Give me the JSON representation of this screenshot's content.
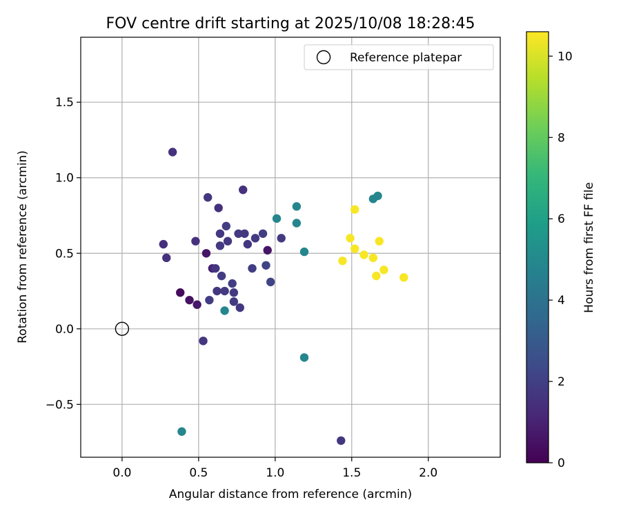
{
  "chart_data": {
    "type": "scatter",
    "title": "FOV centre drift starting at 2025/10/08 18:28:45",
    "xlabel": "Angular distance from reference (arcmin)",
    "ylabel": "Rotation from reference (arcmin)",
    "xlim": [
      -0.27,
      2.47
    ],
    "ylim": [
      -0.85,
      1.93
    ],
    "x_ticks": [
      0.0,
      0.5,
      1.0,
      1.5,
      2.0
    ],
    "x_tick_labels": [
      "0.0",
      "0.5",
      "1.0",
      "1.5",
      "2.0"
    ],
    "y_ticks": [
      -0.5,
      0.0,
      0.5,
      1.0,
      1.5
    ],
    "y_tick_labels": [
      "−0.5",
      "0.0",
      "0.5",
      "1.0",
      "1.5"
    ],
    "grid": true,
    "legend": {
      "placement": "top-right",
      "entries": [
        {
          "label": "Reference platepar",
          "marker": "open-circle"
        }
      ]
    },
    "reference_point": {
      "x": 0.0,
      "y": 0.0,
      "label": "Reference platepar"
    },
    "colorbar": {
      "label": "Hours from first FF file",
      "min": 0,
      "max": 10.6,
      "ticks": [
        0,
        2,
        4,
        6,
        8,
        10
      ],
      "tick_labels": [
        "0",
        "2",
        "4",
        "6",
        "8",
        "10"
      ],
      "colormap": "viridis",
      "colormap_stops": [
        "#440154",
        "#482878",
        "#3e4a89",
        "#31688e",
        "#26828e",
        "#1f9e89",
        "#35b779",
        "#6ece58",
        "#b5de2b",
        "#fde725"
      ]
    },
    "series": [
      {
        "name": "FOV centre",
        "points": [
          {
            "x": 0.33,
            "y": 1.17,
            "hours": 1.5
          },
          {
            "x": 0.56,
            "y": 0.87,
            "hours": 1.7
          },
          {
            "x": 0.63,
            "y": 0.8,
            "hours": 1.5
          },
          {
            "x": 0.79,
            "y": 0.92,
            "hours": 1.5
          },
          {
            "x": 0.68,
            "y": 0.68,
            "hours": 1.9
          },
          {
            "x": 0.64,
            "y": 0.63,
            "hours": 1.7
          },
          {
            "x": 0.76,
            "y": 0.63,
            "hours": 1.8
          },
          {
            "x": 0.8,
            "y": 0.63,
            "hours": 1.8
          },
          {
            "x": 0.87,
            "y": 0.6,
            "hours": 1.8
          },
          {
            "x": 0.92,
            "y": 0.63,
            "hours": 1.9
          },
          {
            "x": 1.04,
            "y": 0.6,
            "hours": 1.8
          },
          {
            "x": 0.69,
            "y": 0.58,
            "hours": 1.7
          },
          {
            "x": 0.64,
            "y": 0.55,
            "hours": 1.8
          },
          {
            "x": 0.82,
            "y": 0.56,
            "hours": 1.7
          },
          {
            "x": 0.27,
            "y": 0.56,
            "hours": 1.4
          },
          {
            "x": 0.48,
            "y": 0.58,
            "hours": 1.5
          },
          {
            "x": 0.29,
            "y": 0.47,
            "hours": 1.5
          },
          {
            "x": 0.55,
            "y": 0.5,
            "hours": 0.6
          },
          {
            "x": 0.95,
            "y": 0.52,
            "hours": 0.6
          },
          {
            "x": 0.59,
            "y": 0.4,
            "hours": 1.0
          },
          {
            "x": 0.61,
            "y": 0.4,
            "hours": 1.7
          },
          {
            "x": 0.85,
            "y": 0.4,
            "hours": 1.9
          },
          {
            "x": 0.94,
            "y": 0.42,
            "hours": 2.1
          },
          {
            "x": 0.65,
            "y": 0.35,
            "hours": 1.9
          },
          {
            "x": 0.72,
            "y": 0.3,
            "hours": 1.9
          },
          {
            "x": 0.97,
            "y": 0.31,
            "hours": 2.1
          },
          {
            "x": 0.62,
            "y": 0.25,
            "hours": 1.7
          },
          {
            "x": 0.67,
            "y": 0.25,
            "hours": 1.8
          },
          {
            "x": 0.73,
            "y": 0.24,
            "hours": 1.8
          },
          {
            "x": 0.38,
            "y": 0.24,
            "hours": 0.3
          },
          {
            "x": 0.57,
            "y": 0.19,
            "hours": 1.9
          },
          {
            "x": 0.44,
            "y": 0.19,
            "hours": 0.5
          },
          {
            "x": 0.73,
            "y": 0.18,
            "hours": 1.8
          },
          {
            "x": 0.49,
            "y": 0.16,
            "hours": 0.7
          },
          {
            "x": 0.77,
            "y": 0.14,
            "hours": 1.7
          },
          {
            "x": 0.67,
            "y": 0.12,
            "hours": 4.9
          },
          {
            "x": 0.53,
            "y": -0.08,
            "hours": 1.7
          },
          {
            "x": 0.39,
            "y": -0.68,
            "hours": 4.9
          },
          {
            "x": 1.43,
            "y": -0.74,
            "hours": 1.7
          },
          {
            "x": 1.19,
            "y": -0.19,
            "hours": 4.9
          },
          {
            "x": 1.01,
            "y": 0.73,
            "hours": 4.9
          },
          {
            "x": 1.14,
            "y": 0.81,
            "hours": 4.9
          },
          {
            "x": 1.14,
            "y": 0.7,
            "hours": 4.9
          },
          {
            "x": 1.19,
            "y": 0.51,
            "hours": 4.9
          },
          {
            "x": 1.64,
            "y": 0.86,
            "hours": 4.9
          },
          {
            "x": 1.67,
            "y": 0.88,
            "hours": 4.9
          },
          {
            "x": 1.52,
            "y": 0.79,
            "hours": 10.5
          },
          {
            "x": 1.49,
            "y": 0.6,
            "hours": 10.5
          },
          {
            "x": 1.52,
            "y": 0.53,
            "hours": 10.5
          },
          {
            "x": 1.68,
            "y": 0.58,
            "hours": 10.5
          },
          {
            "x": 1.44,
            "y": 0.45,
            "hours": 10.5
          },
          {
            "x": 1.58,
            "y": 0.49,
            "hours": 10.5
          },
          {
            "x": 1.64,
            "y": 0.47,
            "hours": 10.5
          },
          {
            "x": 1.71,
            "y": 0.39,
            "hours": 10.5
          },
          {
            "x": 1.66,
            "y": 0.35,
            "hours": 10.5
          },
          {
            "x": 1.84,
            "y": 0.34,
            "hours": 10.5
          }
        ]
      }
    ]
  }
}
